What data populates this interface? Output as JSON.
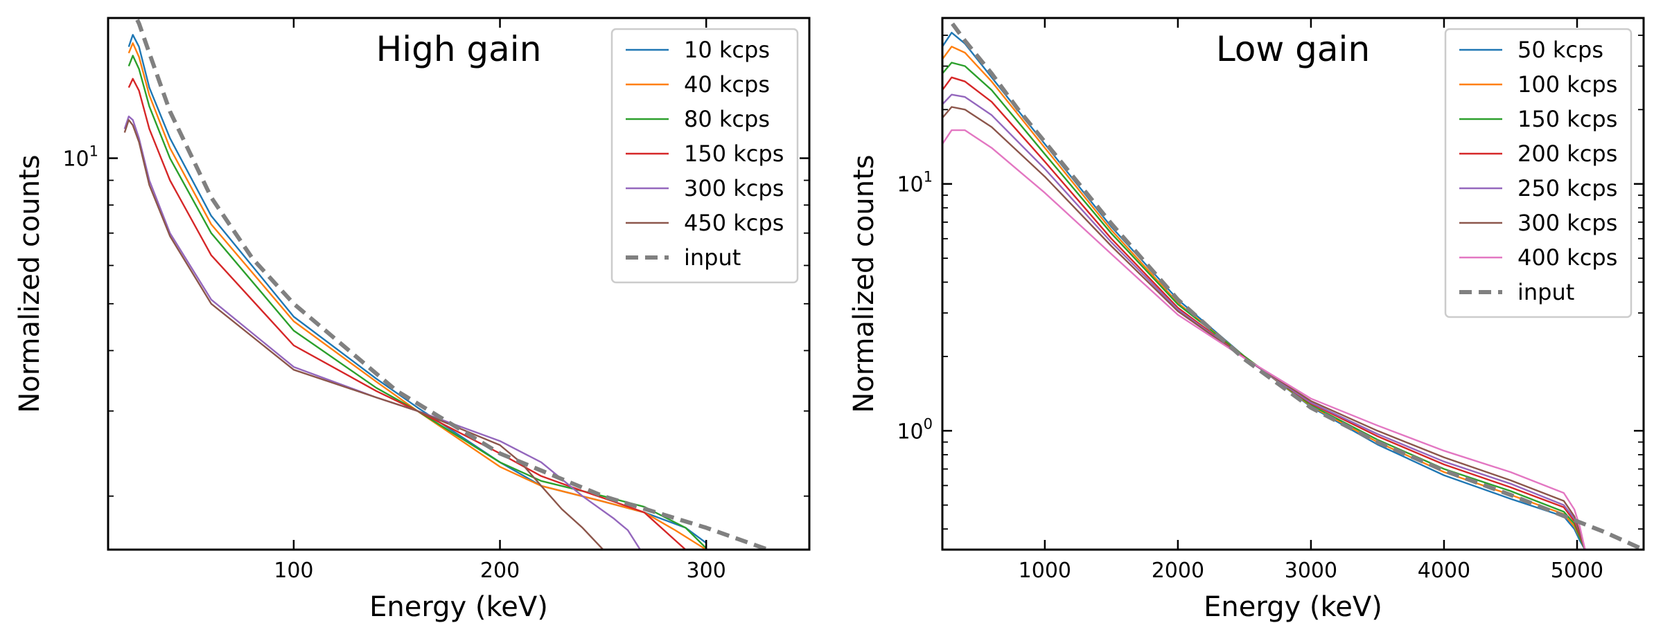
{
  "chart_data": [
    {
      "type": "line",
      "title": "High gain",
      "xlabel": "Energy (keV)",
      "ylabel": "Normalized counts",
      "xscale": "linear",
      "yscale": "log",
      "xlim": [
        10,
        350
      ],
      "ylim": [
        1.55,
        19.5
      ],
      "xticks": [
        100,
        200,
        300
      ],
      "xtick_labels": [
        "100",
        "200",
        "300"
      ],
      "yticks": [
        10
      ],
      "ytick_labels": [
        "10",
        "1"
      ],
      "legend_position": "top-right",
      "series": [
        {
          "name": "10 kcps",
          "color": "#1f77b4",
          "dash": false,
          "x": [
            20,
            22,
            25,
            30,
            40,
            60,
            100,
            140,
            160,
            200,
            220,
            250,
            270,
            290,
            300
          ],
          "y": [
            17.0,
            18.0,
            17.0,
            14.0,
            11.0,
            7.6,
            4.7,
            3.5,
            3.05,
            2.35,
            2.1,
            1.95,
            1.85,
            1.72,
            1.6
          ]
        },
        {
          "name": "40 kcps",
          "color": "#ff7f0e",
          "dash": false,
          "x": [
            20,
            22,
            25,
            30,
            40,
            60,
            100,
            140,
            160,
            200,
            220,
            250,
            270,
            285,
            300
          ],
          "y": [
            16.5,
            17.3,
            16.2,
            13.5,
            10.5,
            7.3,
            4.6,
            3.45,
            3.0,
            2.3,
            2.1,
            1.95,
            1.85,
            1.7,
            1.55
          ]
        },
        {
          "name": "80 kcps",
          "color": "#2ca02c",
          "dash": false,
          "x": [
            20,
            22,
            25,
            30,
            40,
            60,
            100,
            140,
            160,
            200,
            220,
            250,
            270,
            290,
            300
          ],
          "y": [
            15.5,
            16.3,
            15.3,
            12.8,
            10.0,
            7.0,
            4.4,
            3.35,
            3.0,
            2.35,
            2.15,
            2.0,
            1.9,
            1.72,
            1.56
          ]
        },
        {
          "name": "150 kcps",
          "color": "#d62728",
          "dash": false,
          "x": [
            20,
            22,
            25,
            30,
            40,
            60,
            100,
            140,
            160,
            200,
            220,
            240,
            255,
            270,
            285,
            290
          ],
          "y": [
            14.0,
            14.6,
            13.8,
            11.5,
            9.0,
            6.3,
            4.1,
            3.3,
            3.0,
            2.45,
            2.2,
            2.05,
            1.95,
            1.85,
            1.62,
            1.55
          ]
        },
        {
          "name": "300 kcps",
          "color": "#9467bd",
          "dash": false,
          "x": [
            18,
            20,
            22,
            25,
            30,
            40,
            60,
            100,
            140,
            160,
            200,
            220,
            240,
            255,
            262,
            268
          ],
          "y": [
            11.5,
            12.2,
            12.0,
            11.0,
            9.0,
            7.0,
            5.1,
            3.7,
            3.2,
            3.0,
            2.6,
            2.35,
            2.0,
            1.8,
            1.7,
            1.55
          ]
        },
        {
          "name": "450 kcps",
          "color": "#8c564b",
          "dash": false,
          "x": [
            18,
            20,
            22,
            25,
            30,
            40,
            60,
            100,
            140,
            160,
            200,
            210,
            220,
            230,
            240,
            250
          ],
          "y": [
            11.3,
            12.0,
            11.7,
            10.8,
            8.8,
            6.9,
            5.0,
            3.65,
            3.2,
            3.0,
            2.55,
            2.35,
            2.1,
            1.88,
            1.72,
            1.55
          ]
        },
        {
          "name": "input",
          "color": "#808080",
          "dash": true,
          "x": [
            20,
            25,
            30,
            40,
            60,
            80,
            100,
            150,
            200,
            250,
            300,
            330
          ],
          "y": [
            21,
            19,
            16.5,
            12.5,
            8.3,
            6.2,
            5.0,
            3.3,
            2.45,
            2.0,
            1.72,
            1.55
          ]
        }
      ]
    },
    {
      "type": "line",
      "title": "Low gain",
      "xlabel": "Energy (keV)",
      "ylabel": "Normalized counts",
      "xscale": "linear",
      "yscale": "log",
      "xlim": [
        230,
        5500
      ],
      "ylim": [
        0.33,
        47
      ],
      "xticks": [
        1000,
        2000,
        3000,
        4000,
        5000
      ],
      "xtick_labels": [
        "1000",
        "2000",
        "3000",
        "4000",
        "5000"
      ],
      "yticks": [
        1,
        10
      ],
      "ytick_labels": [
        "10",
        "0",
        "10",
        "1"
      ],
      "legend_position": "top-right",
      "series": [
        {
          "name": "50 kcps",
          "color": "#1f77b4",
          "dash": false,
          "x": [
            230,
            300,
            400,
            600,
            1000,
            1500,
            2000,
            2500,
            3000,
            3500,
            4000,
            4500,
            4900,
            4980,
            5020,
            5060
          ],
          "y": [
            36,
            41,
            37,
            27,
            14.5,
            6.7,
            3.4,
            2.0,
            1.25,
            0.88,
            0.66,
            0.53,
            0.45,
            0.4,
            0.36,
            0.33
          ]
        },
        {
          "name": "100 kcps",
          "color": "#ff7f0e",
          "dash": false,
          "x": [
            230,
            300,
            400,
            600,
            1000,
            1500,
            2000,
            2500,
            3000,
            3500,
            4000,
            4500,
            4900,
            4980,
            5020,
            5060
          ],
          "y": [
            32,
            36,
            34,
            26,
            14,
            6.5,
            3.3,
            2.0,
            1.26,
            0.9,
            0.68,
            0.55,
            0.46,
            0.41,
            0.37,
            0.33
          ]
        },
        {
          "name": "150 kcps",
          "color": "#2ca02c",
          "dash": false,
          "x": [
            230,
            300,
            400,
            600,
            1000,
            1500,
            2000,
            2500,
            3000,
            3500,
            4000,
            4500,
            4900,
            4980,
            5020,
            5060
          ],
          "y": [
            28,
            31,
            30,
            24,
            13.2,
            6.3,
            3.25,
            2.0,
            1.27,
            0.92,
            0.7,
            0.57,
            0.47,
            0.42,
            0.37,
            0.33
          ]
        },
        {
          "name": "200 kcps",
          "color": "#d62728",
          "dash": false,
          "x": [
            230,
            300,
            400,
            600,
            1000,
            1500,
            2000,
            2500,
            3000,
            3500,
            4000,
            4500,
            4900,
            4980,
            5020,
            5060
          ],
          "y": [
            24,
            27,
            26,
            21.5,
            12.3,
            6.0,
            3.15,
            1.98,
            1.29,
            0.95,
            0.73,
            0.59,
            0.49,
            0.43,
            0.38,
            0.33
          ]
        },
        {
          "name": "250 kcps",
          "color": "#9467bd",
          "dash": false,
          "x": [
            230,
            300,
            400,
            600,
            1000,
            1500,
            2000,
            2500,
            3000,
            3500,
            4000,
            4500,
            4900,
            4980,
            5020,
            5060
          ],
          "y": [
            21,
            23,
            22.5,
            19,
            11.5,
            5.8,
            3.1,
            1.97,
            1.3,
            0.97,
            0.75,
            0.61,
            0.5,
            0.44,
            0.39,
            0.33
          ]
        },
        {
          "name": "300 kcps",
          "color": "#8c564b",
          "dash": false,
          "x": [
            230,
            300,
            400,
            600,
            1000,
            1500,
            2000,
            2500,
            3000,
            3500,
            4000,
            4500,
            4900,
            4980,
            5020,
            5060
          ],
          "y": [
            18.5,
            20.5,
            20,
            17,
            10.7,
            5.6,
            3.05,
            1.97,
            1.32,
            1.0,
            0.78,
            0.63,
            0.52,
            0.45,
            0.39,
            0.33
          ]
        },
        {
          "name": "400 kcps",
          "color": "#e377c2",
          "dash": false,
          "x": [
            230,
            300,
            400,
            600,
            1000,
            1500,
            2000,
            2500,
            3000,
            3500,
            4000,
            4500,
            4900,
            4980,
            5020,
            5060
          ],
          "y": [
            14.5,
            16.5,
            16.5,
            14,
            9.2,
            5.2,
            2.95,
            1.97,
            1.35,
            1.05,
            0.83,
            0.68,
            0.56,
            0.48,
            0.41,
            0.33
          ]
        },
        {
          "name": "input",
          "color": "#808080",
          "dash": true,
          "x": [
            230,
            300,
            400,
            600,
            800,
            1000,
            1500,
            2000,
            2500,
            3000,
            3500,
            4000,
            4500,
            5000,
            5200,
            5500
          ],
          "y": [
            52,
            45,
            38,
            28,
            20,
            14.8,
            6.9,
            3.4,
            1.95,
            1.24,
            0.9,
            0.69,
            0.55,
            0.43,
            0.39,
            0.33
          ]
        }
      ]
    }
  ]
}
